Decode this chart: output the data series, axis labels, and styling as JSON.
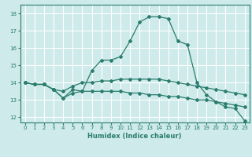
{
  "xlabel": "Humidex (Indice chaleur)",
  "bg_color": "#ceeaea",
  "grid_color": "#ffffff",
  "line_color": "#2a7d6e",
  "xlim": [
    -0.5,
    23.5
  ],
  "ylim": [
    11.7,
    18.5
  ],
  "xticks": [
    0,
    1,
    2,
    3,
    4,
    5,
    6,
    7,
    8,
    9,
    10,
    11,
    12,
    13,
    14,
    15,
    16,
    17,
    18,
    19,
    20,
    21,
    22,
    23
  ],
  "yticks": [
    12,
    13,
    14,
    15,
    16,
    17,
    18
  ],
  "line1_x": [
    0,
    1,
    2,
    3,
    4,
    5,
    6,
    7,
    8,
    9,
    10,
    11,
    12,
    13,
    14,
    15,
    16,
    17,
    18,
    19,
    20,
    21,
    22,
    23
  ],
  "line1_y": [
    14.0,
    13.9,
    13.9,
    13.6,
    13.1,
    13.6,
    13.5,
    14.7,
    15.3,
    15.3,
    15.5,
    16.4,
    17.5,
    17.8,
    17.8,
    17.7,
    16.4,
    16.2,
    14.0,
    13.3,
    12.9,
    12.6,
    12.5,
    11.8
  ],
  "line2_x": [
    0,
    1,
    2,
    3,
    4,
    5,
    6,
    7,
    8,
    9,
    10,
    11,
    12,
    13,
    14,
    15,
    16,
    17,
    18,
    19,
    20,
    21,
    22,
    23
  ],
  "line2_y": [
    14.0,
    13.9,
    13.9,
    13.6,
    13.5,
    13.8,
    14.0,
    14.0,
    14.1,
    14.1,
    14.2,
    14.2,
    14.2,
    14.2,
    14.2,
    14.1,
    14.0,
    13.9,
    13.8,
    13.7,
    13.6,
    13.5,
    13.4,
    13.3
  ],
  "line3_x": [
    0,
    1,
    2,
    3,
    4,
    5,
    6,
    7,
    8,
    9,
    10,
    11,
    12,
    13,
    14,
    15,
    16,
    17,
    18,
    19,
    20,
    21,
    22,
    23
  ],
  "line3_y": [
    14.0,
    13.9,
    13.9,
    13.6,
    13.1,
    13.4,
    13.5,
    13.5,
    13.5,
    13.5,
    13.5,
    13.4,
    13.4,
    13.3,
    13.3,
    13.2,
    13.2,
    13.1,
    13.0,
    13.0,
    12.9,
    12.8,
    12.7,
    12.6
  ],
  "tick_fontsize": 5,
  "xlabel_fontsize": 6
}
